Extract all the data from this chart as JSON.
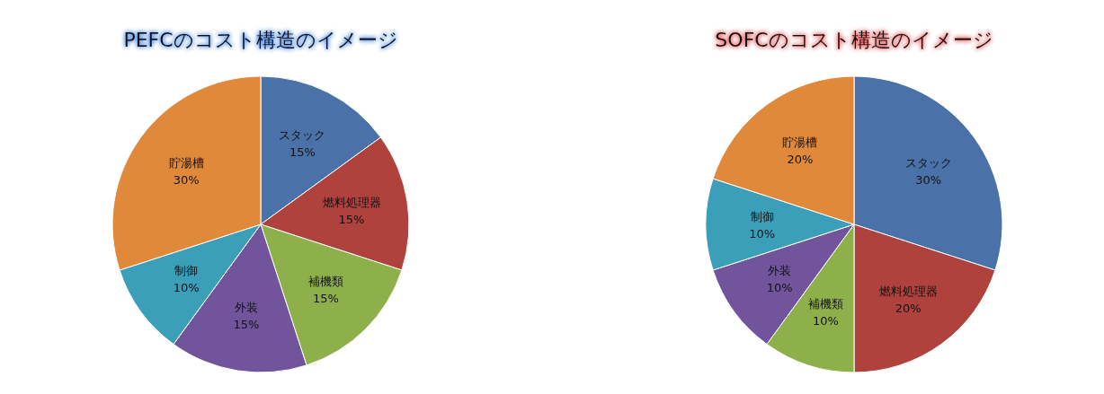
{
  "chart_data": [
    {
      "type": "pie",
      "title": "PEFCのコスト構造のイメージ",
      "categories": [
        "スタック",
        "燃料処理器",
        "補機類",
        "外装",
        "制御",
        "貯湯槽"
      ],
      "values": [
        15,
        15,
        15,
        15,
        10,
        30
      ],
      "value_labels": [
        "15%",
        "15%",
        "15%",
        "15%",
        "10%",
        "30%"
      ],
      "colors": [
        "#4a72a8",
        "#b0423e",
        "#8db04b",
        "#71549c",
        "#3b9fba",
        "#e0893a"
      ]
    },
    {
      "type": "pie",
      "title": "SOFCのコスト構造のイメージ",
      "categories": [
        "スタック",
        "燃料処理器",
        "補機類",
        "外装",
        "制御",
        "貯湯槽"
      ],
      "values": [
        30,
        20,
        10,
        10,
        10,
        20
      ],
      "value_labels": [
        "30%",
        "20%",
        "10%",
        "10%",
        "10%",
        "20%"
      ],
      "colors": [
        "#4a72a8",
        "#b0423e",
        "#8db04b",
        "#71549c",
        "#3b9fba",
        "#e0893a"
      ]
    }
  ]
}
